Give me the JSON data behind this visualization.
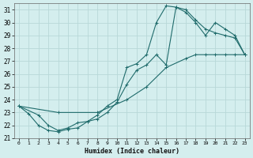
{
  "xlabel": "Humidex (Indice chaleur)",
  "bg_color": "#d4eeee",
  "grid_color": "#b8d8d8",
  "line_color": "#1f6b6b",
  "xlim": [
    -0.5,
    23.5
  ],
  "ylim": [
    21,
    31.5
  ],
  "xticks": [
    0,
    1,
    2,
    3,
    4,
    5,
    6,
    7,
    8,
    9,
    10,
    11,
    12,
    13,
    14,
    15,
    16,
    17,
    18,
    19,
    20,
    21,
    22,
    23
  ],
  "yticks": [
    21,
    22,
    23,
    24,
    25,
    26,
    27,
    28,
    29,
    30,
    31
  ],
  "line1_x": [
    0,
    1,
    2,
    3,
    4,
    5,
    6,
    7,
    8,
    9,
    10,
    11,
    12,
    13,
    14,
    15,
    16,
    17,
    18,
    19,
    20,
    21,
    22,
    23
  ],
  "line1_y": [
    23.5,
    22.9,
    22.0,
    21.6,
    21.5,
    21.7,
    21.8,
    22.3,
    22.8,
    23.5,
    24.0,
    26.5,
    26.8,
    27.5,
    30.0,
    31.3,
    31.2,
    31.0,
    30.2,
    29.5,
    29.2,
    29.0,
    28.8,
    27.5
  ],
  "line2_x": [
    0,
    2,
    3,
    4,
    5,
    6,
    7,
    8,
    9,
    10,
    11,
    12,
    13,
    14,
    15,
    16,
    17,
    18,
    19,
    20,
    21,
    22,
    23
  ],
  "line2_y": [
    23.5,
    22.8,
    22.0,
    21.6,
    21.8,
    22.2,
    22.3,
    22.5,
    23.0,
    23.8,
    25.2,
    26.3,
    26.7,
    27.5,
    26.7,
    31.2,
    30.8,
    30.0,
    29.0,
    30.0,
    29.5,
    29.0,
    27.5
  ],
  "line3_x": [
    0,
    4,
    8,
    11,
    13,
    15,
    17,
    18,
    19,
    20,
    21,
    22,
    23
  ],
  "line3_y": [
    23.5,
    23.0,
    23.0,
    24.0,
    25.0,
    26.5,
    27.2,
    27.5,
    27.5,
    27.5,
    27.5,
    27.5,
    27.5
  ]
}
